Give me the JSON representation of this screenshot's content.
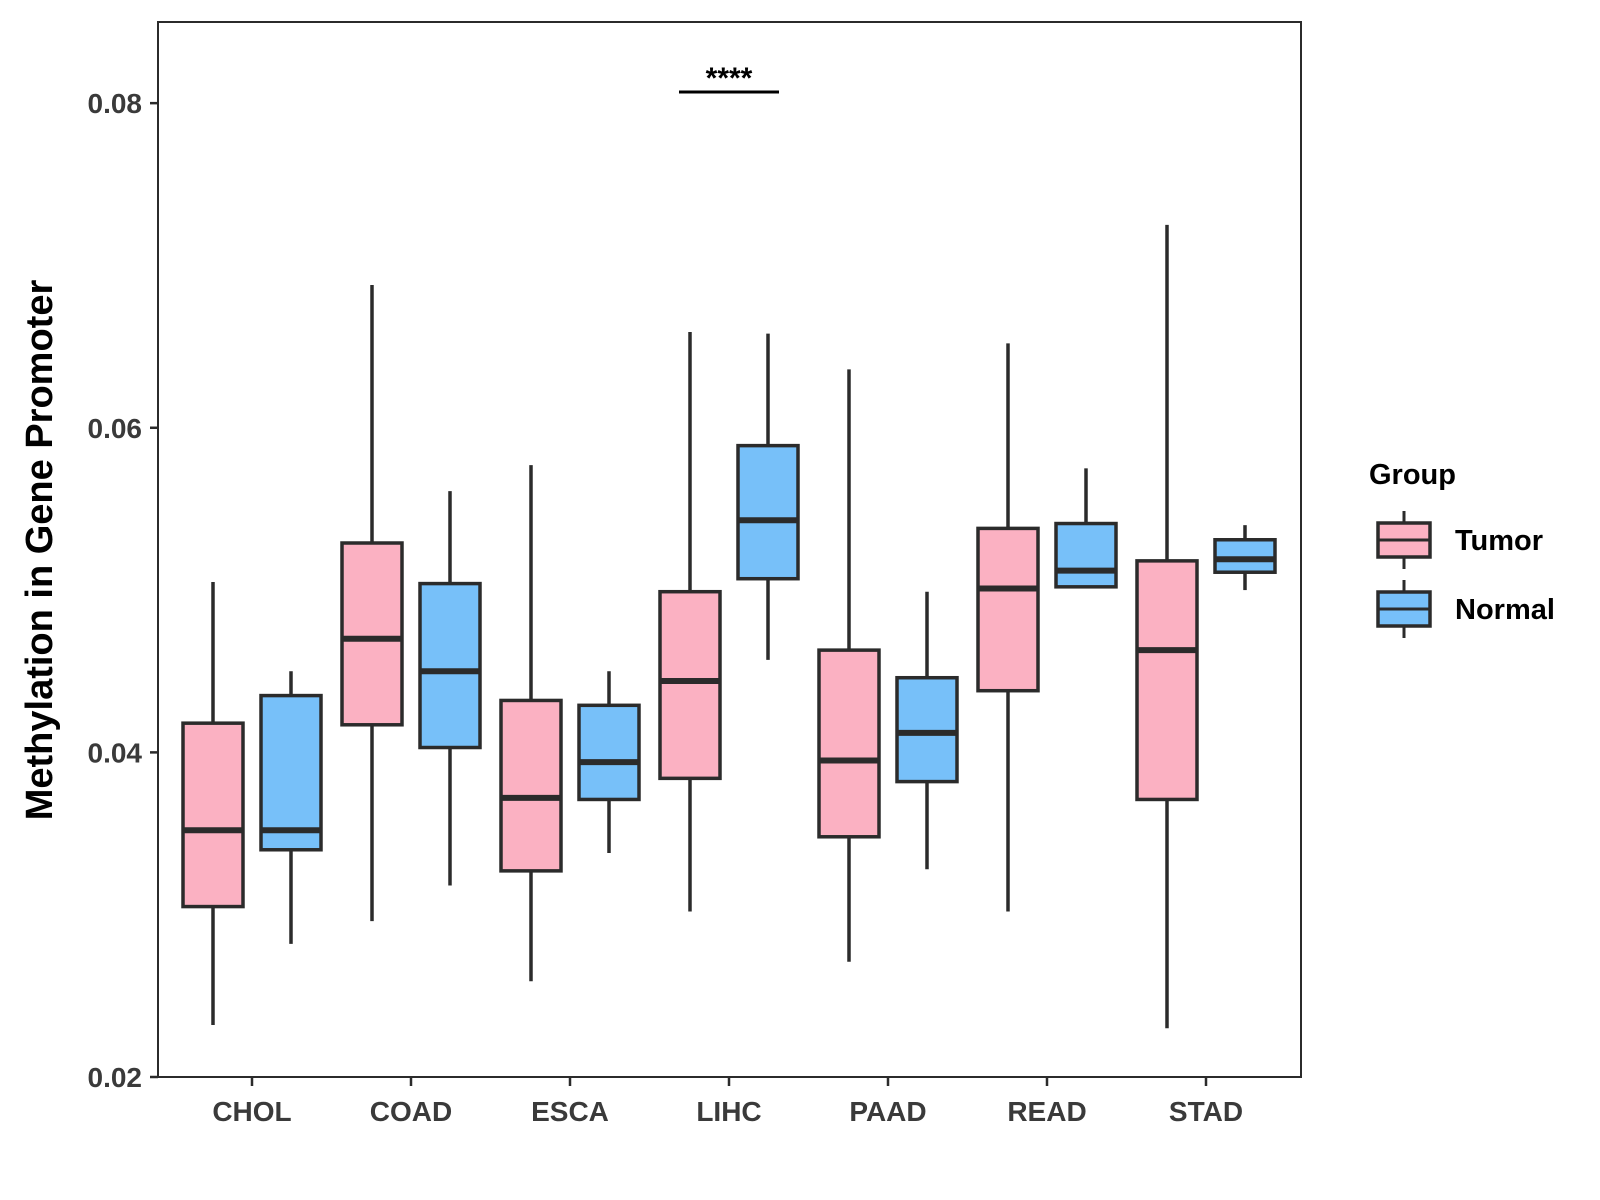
{
  "chart_data": {
    "type": "boxplot",
    "title": "",
    "xlabel": "",
    "ylabel": "Methylation in Gene Promoter",
    "ylim": [
      0.02,
      0.085
    ],
    "yticks": [
      0.02,
      0.04,
      0.06,
      0.08
    ],
    "ytick_labels": [
      "0.02",
      "0.04",
      "0.06",
      "0.08"
    ],
    "categories": [
      "CHOL",
      "COAD",
      "ESCA",
      "LIHC",
      "PAAD",
      "READ",
      "STAD"
    ],
    "legend": {
      "title": "Group",
      "position": "right",
      "entries": [
        {
          "name": "Tumor",
          "color": "#FBB1C2"
        },
        {
          "name": "Normal",
          "color": "#77C0F9"
        }
      ]
    },
    "series": [
      {
        "name": "Tumor",
        "color": "#FBB1C2",
        "boxes": [
          {
            "min": 0.0232,
            "q1": 0.0305,
            "median": 0.0352,
            "q3": 0.0418,
            "max": 0.0505
          },
          {
            "min": 0.0296,
            "q1": 0.0417,
            "median": 0.047,
            "q3": 0.0529,
            "max": 0.0688
          },
          {
            "min": 0.0259,
            "q1": 0.0327,
            "median": 0.0372,
            "q3": 0.0432,
            "max": 0.0577
          },
          {
            "min": 0.0302,
            "q1": 0.0384,
            "median": 0.0444,
            "q3": 0.0499,
            "max": 0.0659
          },
          {
            "min": 0.0271,
            "q1": 0.0348,
            "median": 0.0395,
            "q3": 0.0463,
            "max": 0.0636
          },
          {
            "min": 0.0302,
            "q1": 0.0438,
            "median": 0.0501,
            "q3": 0.0538,
            "max": 0.0652
          },
          {
            "min": 0.023,
            "q1": 0.0371,
            "median": 0.0463,
            "q3": 0.0518,
            "max": 0.0725
          }
        ]
      },
      {
        "name": "Normal",
        "color": "#77C0F9",
        "boxes": [
          {
            "min": 0.0282,
            "q1": 0.034,
            "median": 0.0352,
            "q3": 0.0435,
            "max": 0.045
          },
          {
            "min": 0.0318,
            "q1": 0.0403,
            "median": 0.045,
            "q3": 0.0504,
            "max": 0.0561
          },
          {
            "min": 0.0338,
            "q1": 0.0371,
            "median": 0.0394,
            "q3": 0.0429,
            "max": 0.045
          },
          {
            "min": 0.0457,
            "q1": 0.0507,
            "median": 0.0543,
            "q3": 0.0589,
            "max": 0.0658
          },
          {
            "min": 0.0328,
            "q1": 0.0382,
            "median": 0.0412,
            "q3": 0.0446,
            "max": 0.0499
          },
          {
            "min": 0.0502,
            "q1": 0.0502,
            "median": 0.0512,
            "q3": 0.0541,
            "max": 0.0575
          },
          {
            "min": 0.05,
            "q1": 0.0511,
            "median": 0.0519,
            "q3": 0.0531,
            "max": 0.054
          }
        ]
      }
    ],
    "annotations": [
      {
        "category": "LIHC",
        "text": "****"
      }
    ]
  }
}
